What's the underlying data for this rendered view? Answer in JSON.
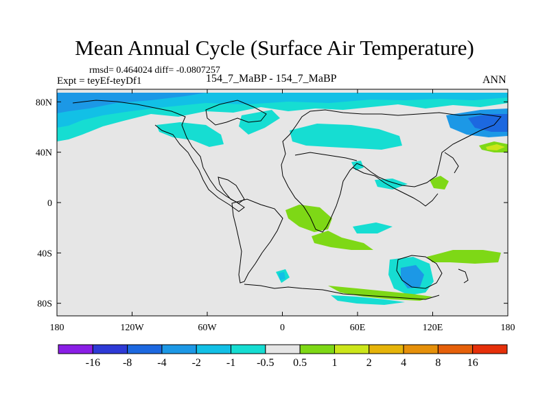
{
  "header": {
    "title": "Mean Annual Cycle (Surface Air Temperature)",
    "stats": "rmsd= 0.464024 diff= -0.0807257",
    "expt": "Expt = teyEf-teyDf1",
    "subtitle": "154_7_MaBP - 154_7_MaBP",
    "season": "ANN"
  },
  "axes": {
    "lat_ticks": [
      {
        "value": 80,
        "label": "80N"
      },
      {
        "value": 40,
        "label": "40N"
      },
      {
        "value": 0,
        "label": "0"
      },
      {
        "value": -40,
        "label": "40S"
      },
      {
        "value": -80,
        "label": "80S"
      }
    ],
    "lon_ticks": [
      {
        "value": -180,
        "label": "180"
      },
      {
        "value": -120,
        "label": "120W"
      },
      {
        "value": -60,
        "label": "60W"
      },
      {
        "value": 0,
        "label": "0"
      },
      {
        "value": 60,
        "label": "60E"
      },
      {
        "value": 120,
        "label": "120E"
      },
      {
        "value": 180,
        "label": "180"
      }
    ],
    "lat_range": [
      -90,
      90
    ],
    "lon_range": [
      -180,
      180
    ]
  },
  "colorbar": {
    "colors": [
      "#8a1ee6",
      "#2e3ad6",
      "#1c68e0",
      "#1c98e6",
      "#12c0e6",
      "#16ddd2",
      "#e6e6e6",
      "#7ed816",
      "#cce61a",
      "#e6b40a",
      "#e6900a",
      "#e6600a",
      "#e6300a"
    ],
    "labels": [
      "-16",
      "-8",
      "-4",
      "-2",
      "-1",
      "-0.5",
      "0.5",
      "1",
      "2",
      "4",
      "8",
      "16"
    ]
  },
  "colors": {
    "background": "#e6e6e6",
    "coastline": "#000000"
  }
}
